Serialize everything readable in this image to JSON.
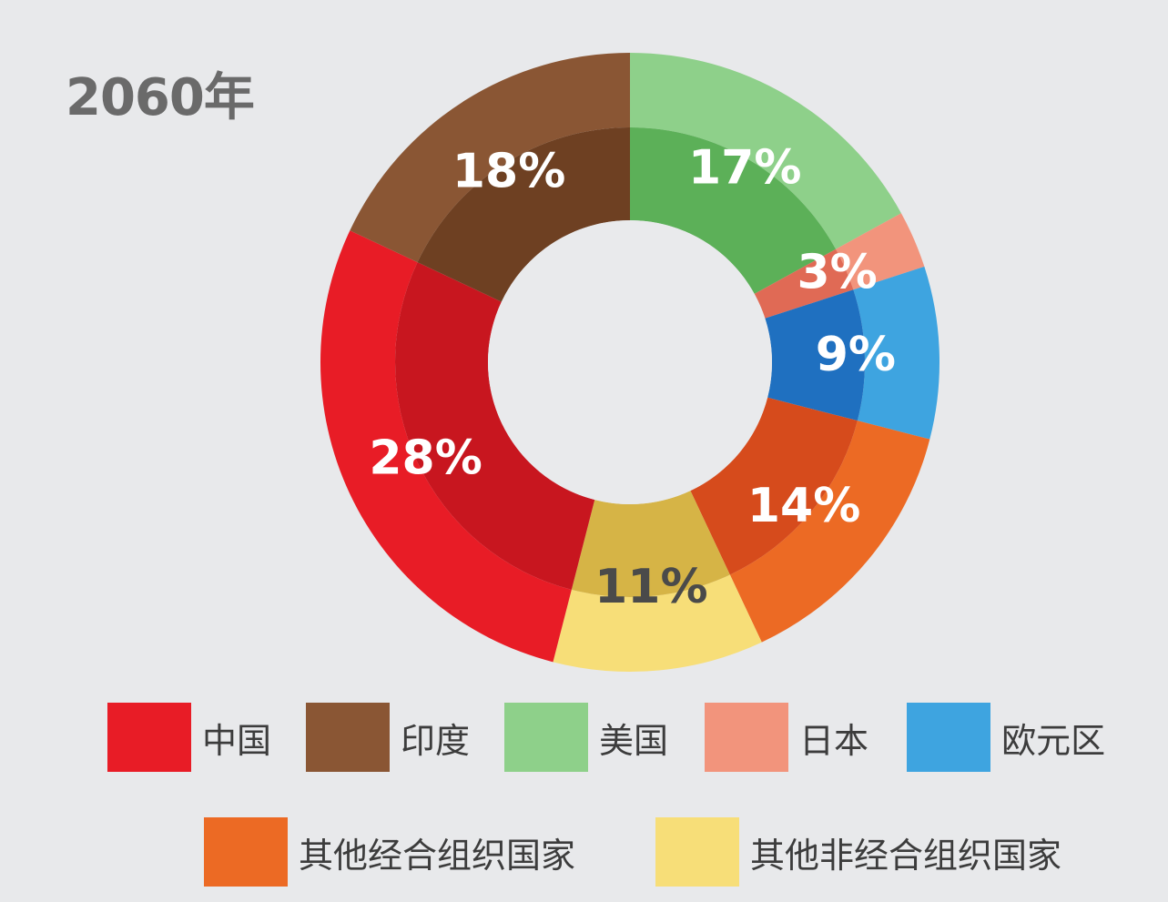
{
  "chart_data": {
    "type": "pie",
    "title": "2060年",
    "slices": [
      {
        "label": "美国",
        "value": 17,
        "display": "17%",
        "color": "#8ed08a",
        "inner_color": "#5cb058",
        "text_color": "#ffffff"
      },
      {
        "label": "日本",
        "value": 3,
        "display": "3%",
        "color": "#f2947c",
        "inner_color": "#e06a55",
        "text_color": "#ffffff"
      },
      {
        "label": "欧元区",
        "value": 9,
        "display": "9%",
        "color": "#3ea4e0",
        "inner_color": "#1f70c0",
        "text_color": "#ffffff"
      },
      {
        "label": "其他经合组织国家",
        "value": 14,
        "display": "14%",
        "color": "#ec6a24",
        "inner_color": "#d64b1c",
        "text_color": "#ffffff"
      },
      {
        "label": "其他非经合组织国家",
        "value": 11,
        "display": "11%",
        "color": "#f7de78",
        "inner_color": "#d6b446",
        "text_color": "#4a4a4a"
      },
      {
        "label": "中国",
        "value": 28,
        "display": "28%",
        "color": "#e81c26",
        "inner_color": "#c8161f",
        "text_color": "#ffffff"
      },
      {
        "label": "印度",
        "value": 18,
        "display": "18%",
        "color": "#8a5634",
        "inner_color": "#6e4022",
        "text_color": "#ffffff"
      }
    ],
    "legend": [
      {
        "label": "中国",
        "color": "#e81c26"
      },
      {
        "label": "印度",
        "color": "#8a5634"
      },
      {
        "label": "美国",
        "color": "#8ed08a"
      },
      {
        "label": "日本",
        "color": "#f2947c"
      },
      {
        "label": "欧元区",
        "color": "#3ea4e0"
      },
      {
        "label": "其他经合组织国家",
        "color": "#ec6a24"
      },
      {
        "label": "其他非经合组织国家",
        "color": "#f7de78"
      }
    ],
    "legend_rows": [
      5,
      2
    ]
  }
}
